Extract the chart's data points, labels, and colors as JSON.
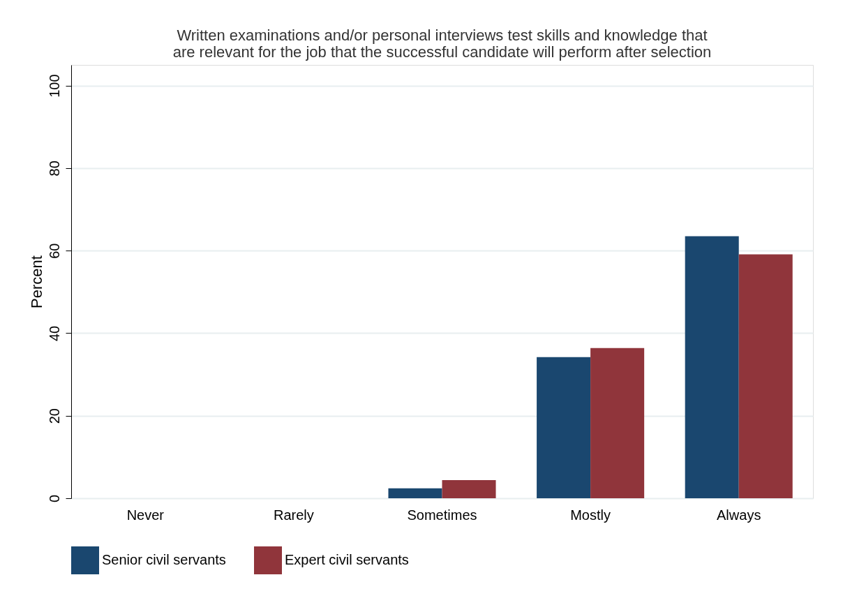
{
  "chart_data": {
    "type": "bar",
    "title": [
      "Written examinations and/or personal interviews test skills and knowledge that",
      "are relevant for the job that the successful candidate will perform after selection"
    ],
    "ylabel": "Percent",
    "categories": [
      "Never",
      "Rarely",
      "Sometimes",
      "Mostly",
      "Always"
    ],
    "series": [
      {
        "name": "Senior civil servants",
        "color": "#1a476f",
        "values": [
          0,
          0,
          2.4,
          34.2,
          63.5
        ]
      },
      {
        "name": "Expert civil servants",
        "color": "#90353b",
        "values": [
          0,
          0,
          4.4,
          36.4,
          59.1
        ]
      }
    ],
    "ylim": [
      0,
      105
    ],
    "yticks": [
      0,
      20,
      40,
      60,
      80,
      100
    ],
    "grid": "y",
    "legend": "bottom"
  }
}
